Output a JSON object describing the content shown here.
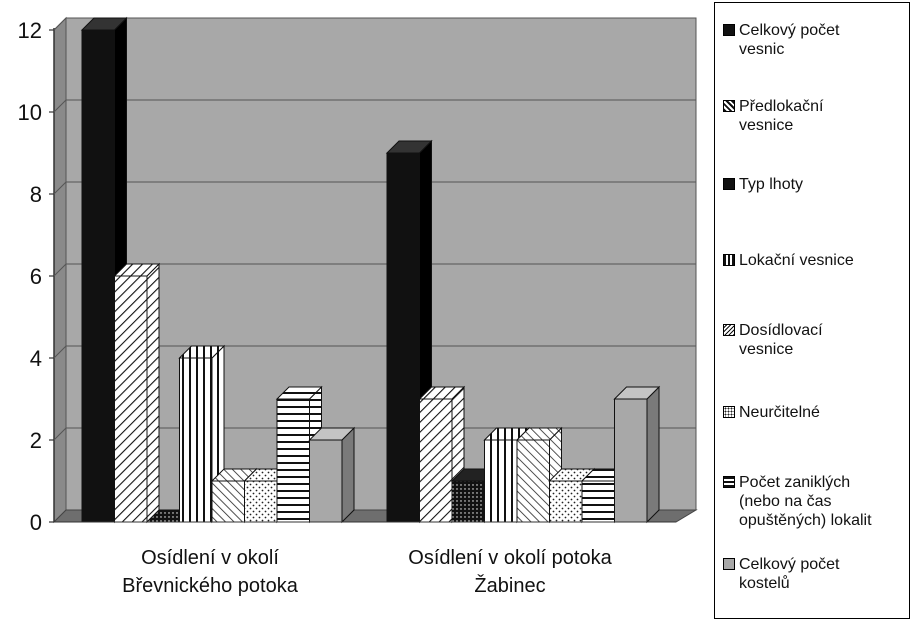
{
  "chart_data": {
    "type": "bar",
    "style": "3d-clustered-column",
    "categories": [
      [
        "Osídlení v okolí",
        "Břevnického potoka"
      ],
      [
        "Osídlení v okolí potoka",
        "Žabinec"
      ]
    ],
    "series": [
      {
        "name": "Celkový počet vesnic",
        "values": [
          12,
          9
        ],
        "pattern": "solid-black"
      },
      {
        "name": "Předlokační vesnice",
        "values": [
          6,
          3
        ],
        "pattern": "diagonal-hatch"
      },
      {
        "name": "Typ lhoty",
        "values": [
          0,
          1
        ],
        "pattern": "dense-dots-black"
      },
      {
        "name": "Lokační vesnice",
        "values": [
          4,
          2
        ],
        "pattern": "vertical-stripes"
      },
      {
        "name": "Dosídlovací vesnice",
        "values": [
          1,
          2
        ],
        "pattern": "diagonal-hatch-light"
      },
      {
        "name": "Neurčitelné",
        "values": [
          1,
          1
        ],
        "pattern": "sparse-dots"
      },
      {
        "name": "Počet zaniklých (nebo na čas opuštěných) lokalit",
        "values": [
          3,
          1
        ],
        "pattern": "horizontal-stripes"
      },
      {
        "name": "Celkový počet kostelů",
        "values": [
          2,
          3
        ],
        "pattern": "solid-gray"
      }
    ],
    "ylim": [
      0,
      12
    ],
    "yticks": [
      "0",
      "2",
      "4",
      "6",
      "8",
      "10",
      "12"
    ],
    "grid": true,
    "legend_position": "right",
    "colors": {
      "wall": "#a8a8a8",
      "floor": "#6e6e6e",
      "grid": "#555555",
      "black": "#111111",
      "gray": "#a8a8a8"
    }
  },
  "legend": [
    [
      "Celkový počet",
      "vesnic"
    ],
    [
      "Předlokační",
      "vesnice"
    ],
    [
      "Typ lhoty"
    ],
    [
      "Lokační vesnice"
    ],
    [
      "Dosídlovací",
      "vesnice"
    ],
    [
      "Neurčitelné"
    ],
    [
      "Počet zaniklých",
      "(nebo na čas",
      "opuštěných) lokalit"
    ],
    [
      "Celkový počet",
      "kostelů"
    ]
  ]
}
